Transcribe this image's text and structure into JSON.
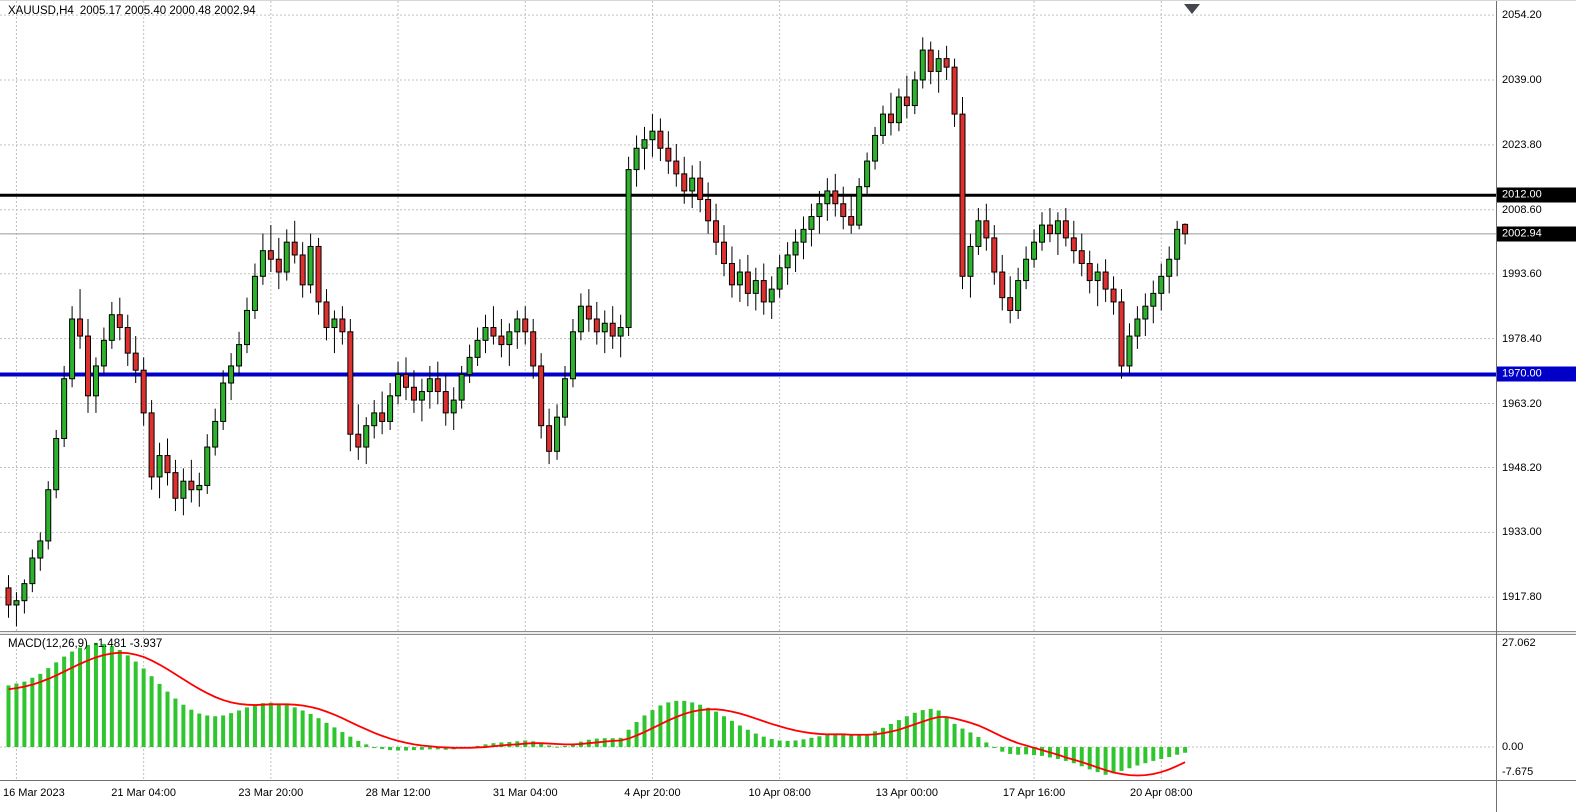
{
  "header": {
    "symbol_period": "XAUUSD,H4",
    "ohlc": "2005.17 2005.40 2000.48 2002.94"
  },
  "macd_panel": {
    "label": "MACD(12,26,9)",
    "values": "-1.481 -3.937",
    "axis_labels": [
      "27.062",
      "0.00",
      "-7.675"
    ]
  },
  "price_axis": {
    "labels": [
      "2054.20",
      "2039.00",
      "2023.80",
      "2008.60",
      "1993.60",
      "1978.40",
      "1963.20",
      "1948.20",
      "1933.00",
      "1917.80"
    ]
  },
  "time_axis": {
    "items": [
      {
        "text": "16 Mar 2023",
        "candle_index": 1
      },
      {
        "text": "21 Mar 04:00",
        "candle_index": 17
      },
      {
        "text": "23 Mar 20:00",
        "candle_index": 33
      },
      {
        "text": "28 Mar 12:00",
        "candle_index": 49
      },
      {
        "text": "31 Mar 04:00",
        "candle_index": 65
      },
      {
        "text": "4 Apr 20:00",
        "candle_index": 81
      },
      {
        "text": "10 Apr 08:00",
        "candle_index": 97
      },
      {
        "text": "13 Apr 00:00",
        "candle_index": 113
      },
      {
        "text": "17 Apr 16:00",
        "candle_index": 129
      },
      {
        "text": "20 Apr 08:00",
        "candle_index": 145
      }
    ]
  },
  "hlines": [
    {
      "price": 2012.0,
      "label": "2012.00",
      "line_color": "#000000",
      "line_width": 3,
      "tag_bg": "#000000"
    },
    {
      "price": 2002.94,
      "label": "2002.94",
      "line_color": "#9a9a9a",
      "line_width": 1,
      "tag_bg": "#000000"
    },
    {
      "price": 1970.0,
      "label": "1970.00",
      "line_color": "#0000C8",
      "line_width": 4,
      "tag_bg": "#0000C8"
    }
  ],
  "colors": {
    "background": "#ffffff",
    "grid": "#c0c0c0",
    "candle_up": "#2db22d",
    "candle_down": "#df3030",
    "candle_outline": "#000000",
    "macd_histogram": "#2fc52f",
    "macd_signal": "#ff0000",
    "axis_text": "#000000",
    "separator": "#8a8a8a"
  },
  "chart_data": {
    "type": "candlestick",
    "symbol": "XAUUSD",
    "timeframe": "H4",
    "title": "XAUUSD,H4 2005.17 2005.40 2000.48 2002.94",
    "ohlc_current": {
      "open": 2005.17,
      "high": 2005.4,
      "low": 2000.48,
      "close": 2002.94
    },
    "price_axis_range": {
      "top": 2057.5,
      "bottom": 1909.9
    },
    "grid": true,
    "candles": [
      [
        1920,
        1923,
        1913,
        1916
      ],
      [
        1916,
        1919,
        1911,
        1917
      ],
      [
        1917,
        1922,
        1914,
        1921
      ],
      [
        1921,
        1929,
        1919,
        1927
      ],
      [
        1927,
        1933,
        1924,
        1931
      ],
      [
        1931,
        1945,
        1929,
        1943
      ],
      [
        1943,
        1957,
        1941,
        1955
      ],
      [
        1955,
        1972,
        1953,
        1969
      ],
      [
        1969,
        1986,
        1967,
        1983
      ],
      [
        1983,
        1990,
        1976,
        1979
      ],
      [
        1979,
        1983,
        1961,
        1965
      ],
      [
        1965,
        1974,
        1961,
        1972
      ],
      [
        1972,
        1981,
        1970,
        1978
      ],
      [
        1978,
        1987,
        1976,
        1984
      ],
      [
        1984,
        1988,
        1978,
        1981
      ],
      [
        1981,
        1984,
        1972,
        1975
      ],
      [
        1975,
        1979,
        1968,
        1971
      ],
      [
        1971,
        1974,
        1958,
        1961
      ],
      [
        1961,
        1964,
        1943,
        1946
      ],
      [
        1946,
        1954,
        1941,
        1951
      ],
      [
        1951,
        1955,
        1944,
        1947
      ],
      [
        1947,
        1950,
        1938,
        1941
      ],
      [
        1941,
        1948,
        1937,
        1945
      ],
      [
        1945,
        1950,
        1940,
        1943
      ],
      [
        1943,
        1947,
        1939,
        1944
      ],
      [
        1944,
        1956,
        1942,
        1953
      ],
      [
        1953,
        1962,
        1951,
        1959
      ],
      [
        1959,
        1971,
        1957,
        1968
      ],
      [
        1968,
        1975,
        1964,
        1972
      ],
      [
        1972,
        1980,
        1970,
        1977
      ],
      [
        1977,
        1988,
        1975,
        1985
      ],
      [
        1985,
        1996,
        1983,
        1993
      ],
      [
        1993,
        2003,
        1991,
        1999
      ],
      [
        1999,
        2005,
        1994,
        1997
      ],
      [
        1997,
        2002,
        1990,
        1994
      ],
      [
        1994,
        2004,
        1992,
        2001
      ],
      [
        2001,
        2006,
        1996,
        1998
      ],
      [
        1998,
        2001,
        1988,
        1991
      ],
      [
        1991,
        2003,
        1989,
        2000
      ],
      [
        2000,
        2002,
        1984,
        1987
      ],
      [
        1987,
        1990,
        1978,
        1981
      ],
      [
        1981,
        1985,
        1975,
        1983
      ],
      [
        1983,
        1986,
        1977,
        1980
      ],
      [
        1980,
        1983,
        1952,
        1956
      ],
      [
        1956,
        1963,
        1950,
        1953
      ],
      [
        1953,
        1960,
        1949,
        1958
      ],
      [
        1958,
        1964,
        1955,
        1961
      ],
      [
        1961,
        1966,
        1956,
        1959
      ],
      [
        1959,
        1968,
        1957,
        1965
      ],
      [
        1965,
        1973,
        1963,
        1970
      ],
      [
        1970,
        1974,
        1964,
        1967
      ],
      [
        1967,
        1971,
        1961,
        1964
      ],
      [
        1964,
        1969,
        1959,
        1966
      ],
      [
        1966,
        1972,
        1962,
        1969
      ],
      [
        1969,
        1973,
        1963,
        1966
      ],
      [
        1966,
        1970,
        1958,
        1961
      ],
      [
        1961,
        1967,
        1957,
        1964
      ],
      [
        1964,
        1972,
        1962,
        1970
      ],
      [
        1970,
        1977,
        1968,
        1974
      ],
      [
        1974,
        1981,
        1972,
        1978
      ],
      [
        1978,
        1984,
        1975,
        1981
      ],
      [
        1981,
        1986,
        1977,
        1979
      ],
      [
        1979,
        1983,
        1974,
        1977
      ],
      [
        1977,
        1982,
        1972,
        1980
      ],
      [
        1980,
        1985,
        1976,
        1983
      ],
      [
        1983,
        1986,
        1977,
        1980
      ],
      [
        1980,
        1983,
        1969,
        1972
      ],
      [
        1972,
        1975,
        1955,
        1958
      ],
      [
        1958,
        1962,
        1949,
        1952
      ],
      [
        1952,
        1963,
        1950,
        1960
      ],
      [
        1960,
        1972,
        1958,
        1969
      ],
      [
        1969,
        1983,
        1967,
        1980
      ],
      [
        1980,
        1989,
        1978,
        1986
      ],
      [
        1986,
        1990,
        1980,
        1983
      ],
      [
        1983,
        1987,
        1977,
        1980
      ],
      [
        1980,
        1985,
        1975,
        1982
      ],
      [
        1982,
        1986,
        1976,
        1979
      ],
      [
        1979,
        1984,
        1974,
        1981
      ],
      [
        1981,
        2021,
        1979,
        2018
      ],
      [
        2018,
        2026,
        2014,
        2023
      ],
      [
        2023,
        2028,
        2018,
        2025
      ],
      [
        2025,
        2031,
        2021,
        2027
      ],
      [
        2027,
        2030,
        2020,
        2023
      ],
      [
        2023,
        2027,
        2017,
        2020
      ],
      [
        2020,
        2024,
        2014,
        2017
      ],
      [
        2017,
        2021,
        2010,
        2013
      ],
      [
        2013,
        2019,
        2009,
        2016
      ],
      [
        2016,
        2020,
        2008,
        2011
      ],
      [
        2011,
        2015,
        2003,
        2006
      ],
      [
        2006,
        2010,
        1998,
        2001
      ],
      [
        2001,
        2005,
        1993,
        1996
      ],
      [
        1996,
        2000,
        1988,
        1991
      ],
      [
        1991,
        1997,
        1987,
        1994
      ],
      [
        1994,
        1998,
        1986,
        1989
      ],
      [
        1989,
        1995,
        1985,
        1992
      ],
      [
        1992,
        1996,
        1984,
        1987
      ],
      [
        1987,
        1993,
        1983,
        1990
      ],
      [
        1990,
        1998,
        1988,
        1995
      ],
      [
        1995,
        2001,
        1991,
        1998
      ],
      [
        1998,
        2004,
        1994,
        2001
      ],
      [
        2001,
        2007,
        1997,
        2004
      ],
      [
        2004,
        2010,
        2000,
        2007
      ],
      [
        2007,
        2013,
        2003,
        2010
      ],
      [
        2010,
        2016,
        2006,
        2013
      ],
      [
        2013,
        2017,
        2007,
        2010
      ],
      [
        2010,
        2014,
        2004,
        2007
      ],
      [
        2007,
        2012,
        2003,
        2005
      ],
      [
        2005,
        2016,
        2004,
        2014
      ],
      [
        2014,
        2022,
        2012,
        2020
      ],
      [
        2020,
        2028,
        2018,
        2026
      ],
      [
        2026,
        2033,
        2024,
        2031
      ],
      [
        2031,
        2036,
        2026,
        2029
      ],
      [
        2029,
        2037,
        2027,
        2035
      ],
      [
        2035,
        2040,
        2030,
        2033
      ],
      [
        2033,
        2041,
        2031,
        2039
      ],
      [
        2039,
        2049,
        2037,
        2046
      ],
      [
        2046,
        2048,
        2038,
        2041
      ],
      [
        2041,
        2046,
        2036,
        2044
      ],
      [
        2044,
        2047,
        2039,
        2042
      ],
      [
        2042,
        2044,
        2028,
        2031
      ],
      [
        2031,
        2035,
        1990,
        1993
      ],
      [
        1993,
        2003,
        1988,
        2000
      ],
      [
        2000,
        2009,
        1998,
        2006
      ],
      [
        2006,
        2010,
        1999,
        2002
      ],
      [
        2002,
        2005,
        1991,
        1994
      ],
      [
        1994,
        1998,
        1985,
        1988
      ],
      [
        1988,
        1993,
        1982,
        1985
      ],
      [
        1985,
        1995,
        1983,
        1992
      ],
      [
        1992,
        2000,
        1990,
        1997
      ],
      [
        1997,
        2004,
        1995,
        2001
      ],
      [
        2001,
        2008,
        1999,
        2005
      ],
      [
        2005,
        2009,
        2001,
        2003
      ],
      [
        2003,
        2008,
        1998,
        2006
      ],
      [
        2006,
        2009,
        2000,
        2002
      ],
      [
        2002,
        2006,
        1996,
        1999
      ],
      [
        1999,
        2003,
        1993,
        1996
      ],
      [
        1996,
        1999,
        1989,
        1992
      ],
      [
        1992,
        1996,
        1986,
        1994
      ],
      [
        1994,
        1997,
        1987,
        1990
      ],
      [
        1990,
        1993,
        1984,
        1987
      ],
      [
        1987,
        1990,
        1969,
        1972
      ],
      [
        1972,
        1982,
        1970,
        1979
      ],
      [
        1979,
        1986,
        1976,
        1983
      ],
      [
        1983,
        1989,
        1979,
        1986
      ],
      [
        1986,
        1992,
        1982,
        1989
      ],
      [
        1989,
        1996,
        1985,
        1993
      ],
      [
        1993,
        2000,
        1989,
        1997
      ],
      [
        1997,
        2006,
        1993,
        2004
      ],
      [
        2005.17,
        2005.4,
        2000.48,
        2002.94
      ]
    ],
    "indicator": {
      "name": "MACD(12,26,9)",
      "current_macd": -1.481,
      "current_signal": -3.937,
      "range": {
        "top": 29.1,
        "bottom": -8.3
      },
      "histogram": [
        16,
        16.5,
        17,
        18,
        19,
        20.5,
        22,
        23.5,
        24.8,
        25.8,
        26.5,
        27.06,
        26.8,
        26.2,
        25.2,
        23.8,
        22.2,
        20.4,
        18.4,
        16.4,
        14.4,
        12.6,
        11,
        9.7,
        8.7,
        8.2,
        8,
        8.2,
        8.8,
        9.5,
        10.3,
        11,
        11.4,
        11.5,
        11.3,
        10.9,
        10.3,
        9.5,
        8.6,
        7.5,
        6.3,
        5.1,
        3.9,
        2.7,
        1.6,
        0.7,
        0,
        -0.5,
        -0.8,
        -0.9,
        -0.9,
        -0.8,
        -0.7,
        -0.6,
        -0.6,
        -0.7,
        -0.6,
        -0.4,
        -0.1,
        0.3,
        0.7,
        1,
        1.2,
        1.3,
        1.5,
        1.7,
        1.5,
        1,
        0.4,
        0.1,
        0.3,
        0.8,
        1.4,
        1.9,
        2.2,
        2.3,
        2.3,
        2.4,
        4.5,
        6.5,
        8.2,
        9.6,
        10.8,
        11.6,
        12,
        12,
        11.6,
        11,
        10.2,
        9.2,
        8,
        6.8,
        5.6,
        4.5,
        3.5,
        2.7,
        2.1,
        1.7,
        1.6,
        1.7,
        2,
        2.4,
        2.8,
        3.2,
        3.3,
        3.2,
        3,
        3,
        3.4,
        4.1,
        5,
        6,
        7,
        8,
        8.9,
        9.6,
        9.9,
        9.5,
        7.8,
        6,
        4.8,
        3.8,
        2.6,
        1.2,
        -0.2,
        -1.2,
        -1.8,
        -2,
        -1.9,
        -2.1,
        -2.3,
        -2.7,
        -3.1,
        -3.6,
        -4.2,
        -5,
        -5.8,
        -6.5,
        -7.2,
        -6.8,
        -6.2,
        -5.5,
        -4.8,
        -4.2,
        -3.6,
        -3.1,
        -2.6,
        -2,
        -1.481
      ],
      "signal": [
        15,
        15.3,
        15.7,
        16.2,
        16.9,
        17.7,
        18.6,
        19.6,
        20.6,
        21.6,
        22.5,
        23.3,
        23.9,
        24.3,
        24.5,
        24.4,
        24,
        23.4,
        22.5,
        21.4,
        20.2,
        18.9,
        17.6,
        16.3,
        15.1,
        14,
        13,
        12.2,
        11.6,
        11.2,
        11,
        10.9,
        11,
        11.1,
        11.1,
        11.1,
        11,
        10.8,
        10.4,
        9.9,
        9.2,
        8.4,
        7.5,
        6.5,
        5.5,
        4.6,
        3.7,
        2.9,
        2.2,
        1.6,
        1.1,
        0.7,
        0.4,
        0.2,
        0,
        -0.1,
        -0.2,
        -0.2,
        -0.2,
        -0.1,
        0,
        0.2,
        0.4,
        0.6,
        0.7,
        0.9,
        1,
        1,
        0.9,
        0.8,
        0.7,
        0.7,
        0.8,
        1,
        1.2,
        1.4,
        1.6,
        1.7,
        2.2,
        3,
        3.9,
        4.9,
        5.9,
        6.9,
        7.8,
        8.6,
        9.2,
        9.6,
        9.8,
        9.8,
        9.6,
        9.2,
        8.7,
        8.1,
        7.4,
        6.7,
        6,
        5.4,
        4.8,
        4.3,
        3.9,
        3.6,
        3.4,
        3.3,
        3.3,
        3.3,
        3.2,
        3.2,
        3.2,
        3.3,
        3.6,
        4,
        4.5,
        5.2,
        5.9,
        6.6,
        7.3,
        7.8,
        7.8,
        7.4,
        6.9,
        6.3,
        5.6,
        4.7,
        3.7,
        2.7,
        1.8,
        1,
        0.4,
        -0.2,
        -0.8,
        -1.4,
        -2,
        -2.7,
        -3.3,
        -3.9,
        -4.6,
        -5.3,
        -6,
        -6.6,
        -7,
        -7.3,
        -7.4,
        -7.3,
        -7,
        -6.5,
        -5.8,
        -4.9,
        -3.937
      ]
    }
  }
}
